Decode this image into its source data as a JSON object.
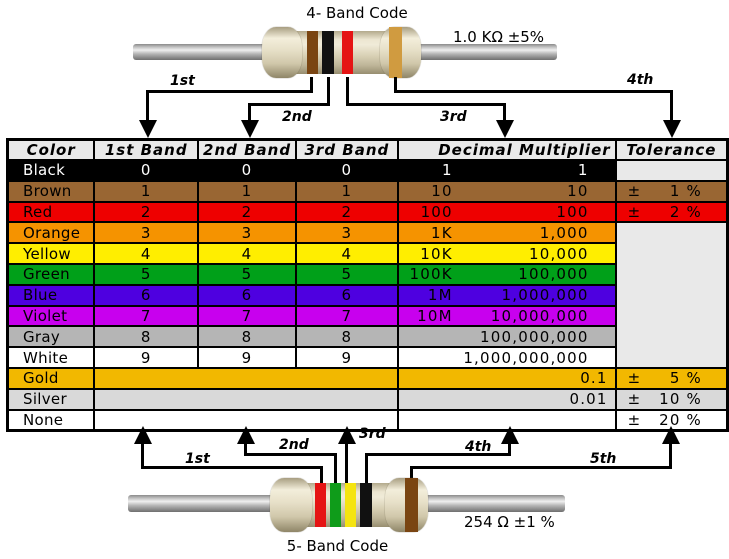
{
  "top_resistor": {
    "title": "4- Band Code",
    "value_label": "1.0 KΩ  ±5%",
    "band_labels": [
      "1st",
      "2nd",
      "3rd",
      "4th"
    ],
    "band_colors": [
      "brown",
      "black",
      "red",
      "gold"
    ]
  },
  "bottom_resistor": {
    "title": "5- Band Code",
    "value_label": "254 Ω  ±1 %",
    "band_labels": [
      "1st",
      "2nd",
      "3rd",
      "4th",
      "5th"
    ],
    "band_colors": [
      "red",
      "green",
      "yellow",
      "black",
      "brown"
    ]
  },
  "table": {
    "headers": [
      "Color",
      "1st Band",
      "2nd Band",
      "3rd Band",
      "Decimal Multiplier",
      "Tolerance"
    ],
    "rows": [
      {
        "name": "Black",
        "bg": "#000000",
        "fg": "#ffffff",
        "bands": [
          "0",
          "0",
          "0"
        ],
        "mult_prefix": "1",
        "mult_value": "1",
        "tolerance": "",
        "tol_kind": "empty"
      },
      {
        "name": "Brown",
        "bg": "#996633",
        "fg": "#000000",
        "bands": [
          "1",
          "1",
          "1"
        ],
        "mult_prefix": "10",
        "mult_value": "10",
        "tolerance": "1 %",
        "tol_kind": "value"
      },
      {
        "name": "Red",
        "bg": "#ee0000",
        "fg": "#000000",
        "bands": [
          "2",
          "2",
          "2"
        ],
        "mult_prefix": "100",
        "mult_value": "100",
        "tolerance": "2 %",
        "tol_kind": "value"
      },
      {
        "name": "Orange",
        "bg": "#f59300",
        "fg": "#000000",
        "bands": [
          "3",
          "3",
          "3"
        ],
        "mult_prefix": "1K",
        "mult_value": "1,000",
        "tolerance": "",
        "tol_kind": "merged-start"
      },
      {
        "name": "Yellow",
        "bg": "#ffee00",
        "fg": "#000000",
        "bands": [
          "4",
          "4",
          "4"
        ],
        "mult_prefix": "10K",
        "mult_value": "10,000",
        "tolerance": "",
        "tol_kind": "merged"
      },
      {
        "name": "Green",
        "bg": "#00a019",
        "fg": "#000000",
        "bands": [
          "5",
          "5",
          "5"
        ],
        "mult_prefix": "100K",
        "mult_value": "100,000",
        "tolerance": "",
        "tol_kind": "merged"
      },
      {
        "name": "Blue",
        "bg": "#4e00e0",
        "fg": "#000000",
        "bands": [
          "6",
          "6",
          "6"
        ],
        "mult_prefix": "1M",
        "mult_value": "1,000,000",
        "tolerance": "",
        "tol_kind": "merged"
      },
      {
        "name": "Violet",
        "bg": "#c800ee",
        "fg": "#000000",
        "bands": [
          "7",
          "7",
          "7"
        ],
        "mult_prefix": "10M",
        "mult_value": "10,000,000",
        "tolerance": "",
        "tol_kind": "merged"
      },
      {
        "name": "Gray",
        "bg": "#b5b5b5",
        "fg": "#000000",
        "bands": [
          "8",
          "8",
          "8"
        ],
        "mult_prefix": "",
        "mult_value": "100,000,000",
        "tolerance": "",
        "tol_kind": "merged"
      },
      {
        "name": "White",
        "bg": "#ffffff",
        "fg": "#000000",
        "bands": [
          "9",
          "9",
          "9"
        ],
        "mult_prefix": "",
        "mult_value": "1,000,000,000",
        "tolerance": "",
        "tol_kind": "merged"
      },
      {
        "name": "Gold",
        "bg": "#f2b800",
        "fg": "#000000",
        "bands_merged": true,
        "mult_merged": true,
        "mult_value": "0.1",
        "tolerance": "5 %",
        "tol_kind": "value"
      },
      {
        "name": "Silver",
        "bg": "#d9d9d9",
        "fg": "#000000",
        "bands_merged": true,
        "mult_merged": true,
        "mult_value": "0.01",
        "tolerance": "10 %",
        "tol_kind": "value"
      },
      {
        "name": "None",
        "bg": "#ffffff",
        "fg": "#000000",
        "bands_merged": true,
        "mult_merged": true,
        "mult_value": "",
        "tolerance": "20 %",
        "tol_kind": "value"
      }
    ],
    "empty_tolerance_bg": "#e9e9e9",
    "plus_minus": "±"
  },
  "band_paint": {
    "brown": "#7a4512",
    "black": "#111111",
    "red": "#e51414",
    "gold": "#d09b40",
    "green": "#0f9c1a",
    "yellow": "#f5e410"
  }
}
